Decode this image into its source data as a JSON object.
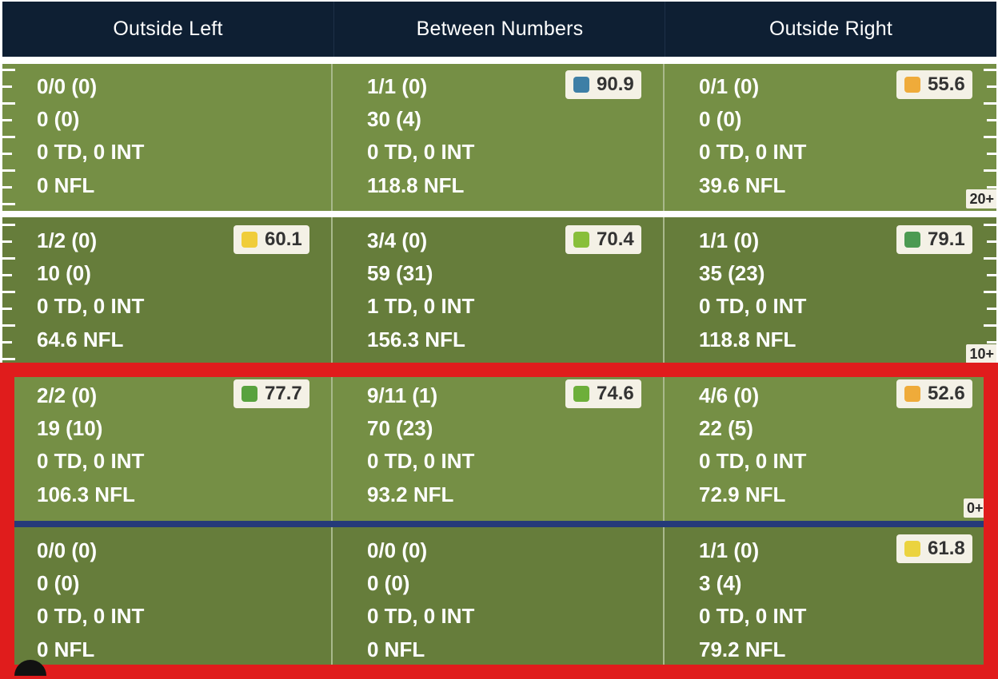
{
  "header": {
    "columns": [
      "Outside Left",
      "Between Numbers",
      "Outside Right"
    ]
  },
  "yard_markers": [
    "20+",
    "10+",
    "0+"
  ],
  "colors": {
    "header_bg": "#0e1f33",
    "field_light": "#758f45",
    "field_dark": "#667d3b",
    "los_line": "#253a7a",
    "highlight_border": "#e01c1c"
  },
  "rows": [
    {
      "cells": [
        {
          "lines": [
            "0/0 (0)",
            "0 (0)",
            "0 TD, 0 INT",
            "0 NFL"
          ],
          "grade": null,
          "grade_color": null
        },
        {
          "lines": [
            "1/1 (0)",
            "30 (4)",
            "0 TD, 0 INT",
            "118.8 NFL"
          ],
          "grade": "90.9",
          "grade_color": "#3e7fa6"
        },
        {
          "lines": [
            "0/1 (0)",
            "0 (0)",
            "0 TD, 0 INT",
            "39.6 NFL"
          ],
          "grade": "55.6",
          "grade_color": "#efab3a"
        }
      ]
    },
    {
      "cells": [
        {
          "lines": [
            "1/2 (0)",
            "10 (0)",
            "0 TD, 0 INT",
            "64.6 NFL"
          ],
          "grade": "60.1",
          "grade_color": "#f0cd3a"
        },
        {
          "lines": [
            "3/4 (0)",
            "59 (31)",
            "1 TD, 0 INT",
            "156.3 NFL"
          ],
          "grade": "70.4",
          "grade_color": "#88bf3a"
        },
        {
          "lines": [
            "1/1 (0)",
            "35 (23)",
            "0 TD, 0 INT",
            "118.8 NFL"
          ],
          "grade": "79.1",
          "grade_color": "#4c9a52"
        }
      ]
    },
    {
      "cells": [
        {
          "lines": [
            "2/2 (0)",
            "19 (10)",
            "0 TD, 0 INT",
            "106.3 NFL"
          ],
          "grade": "77.7",
          "grade_color": "#58a23e"
        },
        {
          "lines": [
            "9/11 (1)",
            "70 (23)",
            "0 TD, 0 INT",
            "93.2 NFL"
          ],
          "grade": "74.6",
          "grade_color": "#6daf3a"
        },
        {
          "lines": [
            "4/6 (0)",
            "22 (5)",
            "0 TD, 0 INT",
            "72.9 NFL"
          ],
          "grade": "52.6",
          "grade_color": "#efab3a"
        }
      ]
    },
    {
      "cells": [
        {
          "lines": [
            "0/0 (0)",
            "0 (0)",
            "0 TD, 0 INT",
            "0 NFL"
          ],
          "grade": null,
          "grade_color": null
        },
        {
          "lines": [
            "0/0 (0)",
            "0 (0)",
            "0 TD, 0 INT",
            "0 NFL"
          ],
          "grade": null,
          "grade_color": null
        },
        {
          "lines": [
            "1/1 (0)",
            "3 (4)",
            "0 TD, 0 INT",
            "79.2 NFL"
          ],
          "grade": "61.8",
          "grade_color": "#ebd33f"
        }
      ]
    }
  ]
}
